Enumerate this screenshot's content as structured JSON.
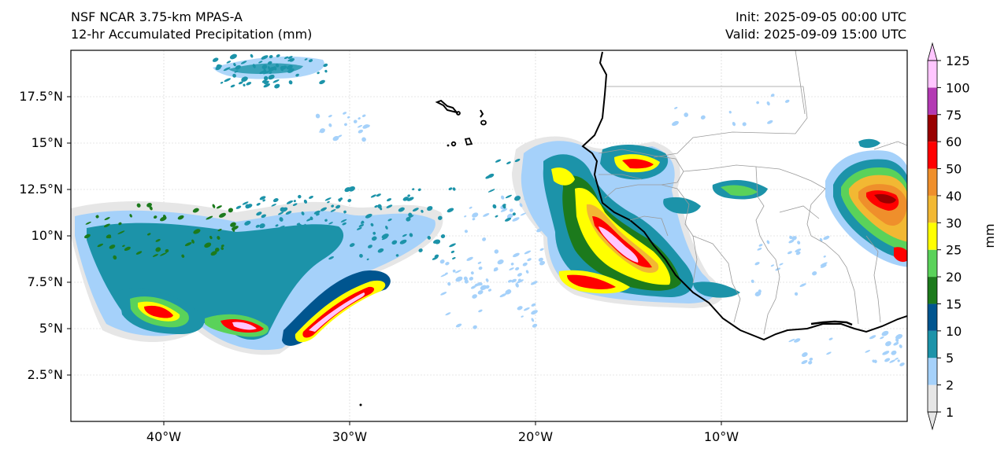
{
  "header": {
    "model": "NSF NCAR 3.75-km MPAS-A",
    "field": "12-hr Accumulated Precipitation (mm)",
    "init": "Init: 2025-09-05 00:00 UTC",
    "valid": "Valid: 2025-09-09 15:00 UTC"
  },
  "map": {
    "extent": {
      "lon": [
        -45,
        0
      ],
      "lat": [
        0,
        20
      ]
    },
    "lon_ticks": [
      {
        "value": -40,
        "label": "40°W"
      },
      {
        "value": -30,
        "label": "30°W"
      },
      {
        "value": -20,
        "label": "20°W"
      },
      {
        "value": -10,
        "label": "10°W"
      }
    ],
    "lat_ticks": [
      {
        "value": 2.5,
        "label": "2.5°N"
      },
      {
        "value": 5,
        "label": "5°N"
      },
      {
        "value": 7.5,
        "label": "7.5°N"
      },
      {
        "value": 10,
        "label": "10°N"
      },
      {
        "value": 12.5,
        "label": "12.5°N"
      },
      {
        "value": 15,
        "label": "15°N"
      },
      {
        "value": 17.5,
        "label": "17.5°N"
      }
    ]
  },
  "colorbar": {
    "unit": "mm",
    "levels": [
      "1",
      "2",
      "5",
      "10",
      "15",
      "20",
      "25",
      "30",
      "40",
      "50",
      "60",
      "75",
      "100",
      "125"
    ],
    "colors": [
      "#e6e6e6",
      "#a5d1fa",
      "#1c93a9",
      "#00558f",
      "#1c7a1c",
      "#5ad25a",
      "#ffff00",
      "#f2b833",
      "#ef8f2b",
      "#ff0000",
      "#990000",
      "#b33ab3",
      "#ffc6ff"
    ]
  }
}
